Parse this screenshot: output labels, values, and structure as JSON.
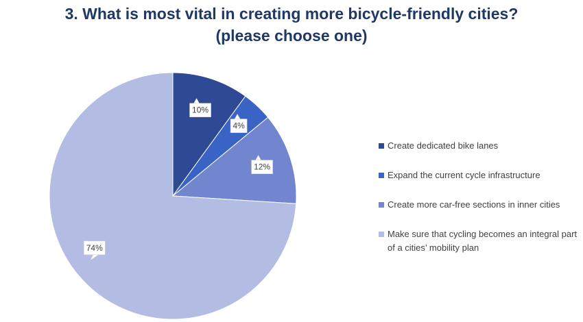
{
  "chart_data": {
    "type": "pie",
    "title_line1": "3. What is most vital in creating more bicycle-friendly cities?",
    "title_line2": "(please choose one)",
    "categories": [
      "Create dedicated bike lanes",
      "Expand the current cycle infrastructure",
      "Create more car-free sections in inner cities",
      "Make sure that cycling becomes an integral part of a cities’ mobility plan"
    ],
    "values": [
      10,
      4,
      12,
      74
    ],
    "data_labels": [
      "10%",
      "4%",
      "12%",
      "74%"
    ],
    "colors": [
      "#2e4a94",
      "#3a63c6",
      "#7286cf",
      "#b3bce3"
    ],
    "legend_position": "right"
  }
}
